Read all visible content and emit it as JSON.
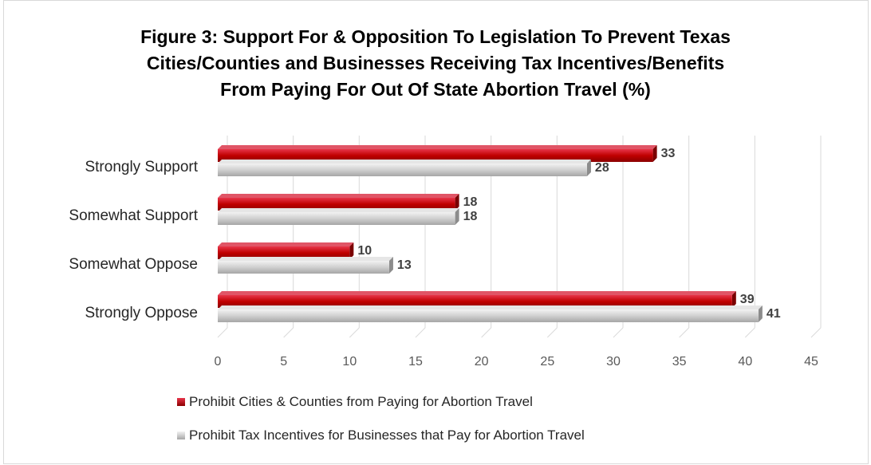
{
  "chart_data": {
    "type": "bar",
    "orientation": "horizontal",
    "title_lines": [
      "Figure 3: Support For & Opposition To Legislation To Prevent Texas",
      "Cities/Counties and Businesses Receiving Tax Incentives/Benefits",
      "From Paying For Out Of State Abortion Travel (%)"
    ],
    "categories": [
      "Strongly Support",
      "Somewhat Support",
      "Somewhat Oppose",
      "Strongly Oppose"
    ],
    "series": [
      {
        "name": "Prohibit Cities & Counties from Paying for Abortion Travel",
        "color": "#c00000",
        "values": [
          33,
          18,
          10,
          39
        ]
      },
      {
        "name": "Prohibit Tax Incentives for Businesses that Pay for Abortion Travel",
        "color": "#bfbfbf",
        "values": [
          28,
          18,
          13,
          41
        ]
      }
    ],
    "xlim": [
      0,
      45
    ],
    "xticks": [
      0,
      5,
      10,
      15,
      20,
      25,
      30,
      35,
      40,
      45
    ],
    "grid": true,
    "legend_position": "bottom-left",
    "data_labels": true
  }
}
